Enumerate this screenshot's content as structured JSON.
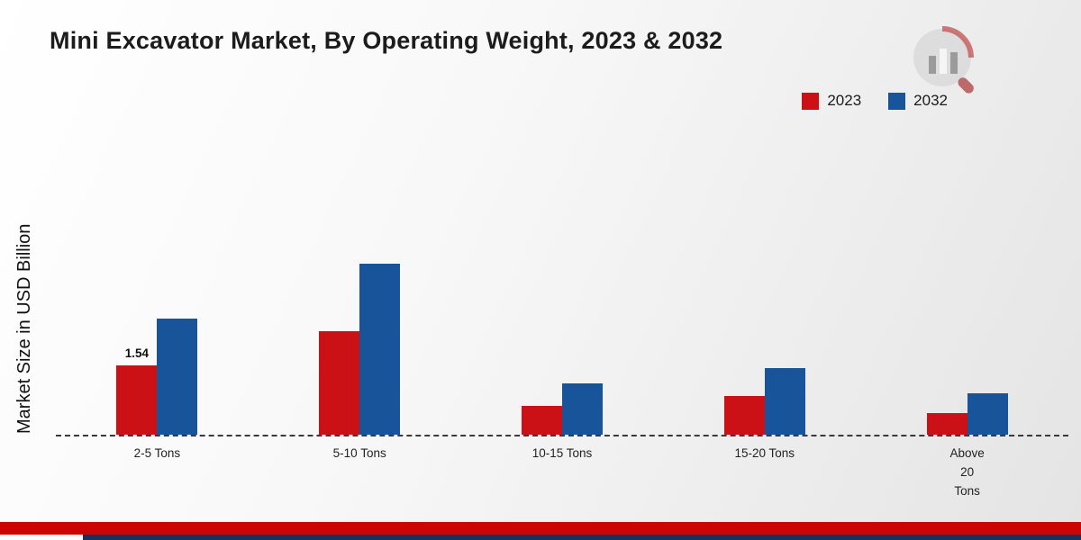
{
  "title": "Mini Excavator Market, By Operating Weight, 2023 & 2032",
  "ylabel": "Market Size in USD Billion",
  "legend": [
    {
      "label": "2023",
      "color": "#cc1116"
    },
    {
      "label": "2032",
      "color": "#17549a"
    }
  ],
  "chart_data": {
    "type": "bar",
    "title": "Mini Excavator Market, By Operating Weight, 2023 & 2032",
    "xlabel": "",
    "ylabel": "Market Size in USD Billion",
    "categories": [
      "2-5 Tons",
      "5-10 Tons",
      "10-15 Tons",
      "15-20 Tons",
      "Above\n20\nTons"
    ],
    "series": [
      {
        "name": "2023",
        "color": "#cc1116",
        "values": [
          1.54,
          2.3,
          0.64,
          0.86,
          0.48
        ]
      },
      {
        "name": "2032",
        "color": "#17549a",
        "values": [
          2.58,
          3.8,
          1.14,
          1.48,
          0.92
        ]
      }
    ],
    "annotations": [
      {
        "series_index": 0,
        "category_index": 0,
        "text": "1.54"
      }
    ],
    "ylim": [
      0,
      4
    ],
    "grid": false,
    "legend_position": "top-right",
    "baseline_style": "dashed"
  },
  "footer": {
    "red_color": "#cc0404",
    "navy_color": "#14345c"
  },
  "logo": {
    "name": "market-research-future-logo"
  }
}
